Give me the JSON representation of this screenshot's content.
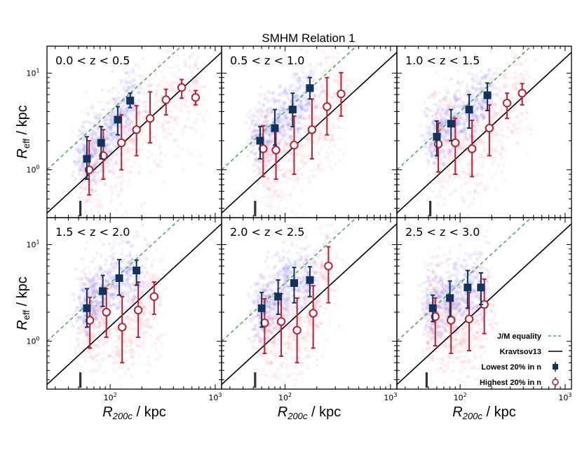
{
  "figure": {
    "title": "SMHM Relation 1",
    "xlabel_prefix": "R",
    "xlabel_sub": "200c",
    "xlabel_suffix": " / kpc",
    "ylabel_prefix": "R",
    "ylabel_sub": "eff",
    "ylabel_suffix": " / kpc",
    "legend": [
      {
        "label": "J/M equality",
        "style": "dashed",
        "color": "#4caf50"
      },
      {
        "label": "Kravtsov13",
        "style": "solid",
        "color": "#000000"
      },
      {
        "label": "Lowest 20% in n",
        "style": "square",
        "color": "#14325c"
      },
      {
        "label": "Highest 20% in n",
        "style": "open-circle",
        "color": "#b82233"
      }
    ],
    "colors": {
      "low_n": "#14325c",
      "high_n": "#b82233",
      "jm_line": "#4caf50",
      "kravtsov": "#000000",
      "scatter_blue": "#4a5cf0",
      "scatter_red": "#f06b7a"
    }
  },
  "chart_data": [
    {
      "type": "scatter",
      "panel_label": "0.0 < z < 0.5",
      "xscale": "log",
      "yscale": "log",
      "xlim": [
        25,
        1150
      ],
      "ylim": [
        0.32,
        19
      ],
      "resolution_x": 52,
      "series": [
        {
          "name": "Lowest 20% in n",
          "x": [
            60,
            82,
            118,
            155
          ],
          "y": [
            1.3,
            1.9,
            3.3,
            5.2
          ],
          "yerr_low": [
            0.5,
            0.6,
            1.0,
            0.8
          ],
          "yerr_high": [
            0.9,
            0.9,
            1.2,
            1.0
          ]
        },
        {
          "name": "Highest 20% in n",
          "x": [
            63,
            86,
            128,
            178,
            240,
            340,
            480,
            650
          ],
          "y": [
            1.0,
            1.4,
            1.9,
            2.6,
            3.4,
            5.3,
            7.1,
            5.6
          ],
          "yerr_low": [
            0.45,
            0.6,
            0.9,
            1.2,
            1.5,
            1.6,
            1.6,
            0.9
          ],
          "yerr_high": [
            1.0,
            1.2,
            1.8,
            2.0,
            3.0,
            1.5,
            1.5,
            1.0
          ]
        }
      ]
    },
    {
      "type": "scatter",
      "panel_label": "0.5 < z < 1.0",
      "xscale": "log",
      "yscale": "log",
      "xlim": [
        25,
        1150
      ],
      "ylim": [
        0.32,
        19
      ],
      "resolution_x": 52,
      "series": [
        {
          "name": "Lowest 20% in n",
          "x": [
            58,
            80,
            118,
            172
          ],
          "y": [
            2.0,
            2.7,
            4.2,
            7.0
          ],
          "yerr_low": [
            0.7,
            0.9,
            1.4,
            1.6
          ],
          "yerr_high": [
            0.8,
            1.5,
            2.0,
            2.0
          ]
        },
        {
          "name": "Highest 20% in n",
          "x": [
            62,
            82,
            122,
            180,
            250,
            340
          ],
          "y": [
            1.65,
            1.6,
            1.8,
            2.6,
            4.5,
            6.1
          ],
          "yerr_low": [
            0.8,
            0.8,
            0.9,
            1.3,
            2.2,
            2.5
          ],
          "yerr_high": [
            1.2,
            1.2,
            1.8,
            2.8,
            4.5,
            4.0
          ]
        }
      ]
    },
    {
      "type": "scatter",
      "panel_label": "1.0 < z < 1.5",
      "xscale": "log",
      "yscale": "log",
      "xlim": [
        25,
        1150
      ],
      "ylim": [
        0.32,
        19
      ],
      "resolution_x": 52,
      "series": [
        {
          "name": "Lowest 20% in n",
          "x": [
            60,
            82,
            122,
            182
          ],
          "y": [
            2.2,
            3.0,
            4.2,
            5.9
          ],
          "yerr_low": [
            0.8,
            1.0,
            1.5,
            1.8
          ],
          "yerr_high": [
            1.0,
            1.2,
            1.8,
            2.0
          ]
        },
        {
          "name": "Highest 20% in n",
          "x": [
            62,
            90,
            130,
            190,
            280,
            390
          ],
          "y": [
            1.85,
            1.9,
            1.65,
            2.7,
            4.9,
            6.2
          ],
          "yerr_low": [
            0.9,
            1.0,
            0.8,
            1.3,
            1.5,
            1.5
          ],
          "yerr_high": [
            1.2,
            1.5,
            1.6,
            2.0,
            1.3,
            1.6
          ]
        }
      ]
    },
    {
      "type": "scatter",
      "panel_label": "1.5 < z < 2.0",
      "xscale": "log",
      "yscale": "log",
      "xlim": [
        25,
        1150
      ],
      "ylim": [
        0.32,
        19
      ],
      "resolution_x": 52,
      "series": [
        {
          "name": "Lowest 20% in n",
          "x": [
            60,
            85,
            122,
            178
          ],
          "y": [
            2.2,
            3.3,
            4.5,
            5.4
          ],
          "yerr_low": [
            0.8,
            1.0,
            1.5,
            1.6
          ],
          "yerr_high": [
            1.3,
            1.5,
            2.5,
            1.5
          ]
        },
        {
          "name": "Highest 20% in n",
          "x": [
            64,
            92,
            130,
            185,
            262
          ],
          "y": [
            1.65,
            2.0,
            1.4,
            2.1,
            2.9
          ],
          "yerr_low": [
            0.8,
            0.9,
            0.8,
            1.0,
            1.0
          ],
          "yerr_high": [
            1.2,
            1.5,
            1.5,
            2.0,
            1.2
          ]
        }
      ]
    },
    {
      "type": "scatter",
      "panel_label": "2.0 < z < 2.5",
      "xscale": "log",
      "yscale": "log",
      "xlim": [
        25,
        1150
      ],
      "ylim": [
        0.32,
        19
      ],
      "resolution_x": 52,
      "series": [
        {
          "name": "Lowest 20% in n",
          "x": [
            60,
            86,
            122,
            172
          ],
          "y": [
            2.2,
            2.9,
            4.0,
            4.3
          ],
          "yerr_low": [
            0.8,
            1.0,
            1.5,
            1.4
          ],
          "yerr_high": [
            1.0,
            1.4,
            1.8,
            1.6
          ]
        },
        {
          "name": "Highest 20% in n",
          "x": [
            64,
            92,
            130,
            185,
            258
          ],
          "y": [
            1.55,
            1.6,
            1.3,
            1.95,
            6.0
          ],
          "yerr_low": [
            0.8,
            0.9,
            0.7,
            1.1,
            3.5
          ],
          "yerr_high": [
            1.2,
            1.5,
            1.5,
            1.8,
            3.5
          ]
        }
      ]
    },
    {
      "type": "scatter",
      "panel_label": "2.5 < z < 3.0",
      "xscale": "log",
      "yscale": "log",
      "xlim": [
        25,
        1150
      ],
      "ylim": [
        0.32,
        19
      ],
      "resolution_x": 48,
      "series": [
        {
          "name": "Lowest 20% in n",
          "x": [
            55,
            80,
            118,
            158
          ],
          "y": [
            2.2,
            2.8,
            3.6,
            3.6
          ],
          "yerr_low": [
            0.6,
            1.0,
            1.4,
            1.2
          ],
          "yerr_high": [
            0.8,
            1.4,
            1.8,
            1.5
          ]
        },
        {
          "name": "Highest 20% in n",
          "x": [
            58,
            82,
            122,
            170
          ],
          "y": [
            1.8,
            1.65,
            1.7,
            2.4
          ],
          "yerr_low": [
            0.9,
            0.9,
            0.9,
            1.2
          ],
          "yerr_high": [
            1.0,
            1.2,
            1.5,
            2.0
          ]
        }
      ]
    }
  ]
}
